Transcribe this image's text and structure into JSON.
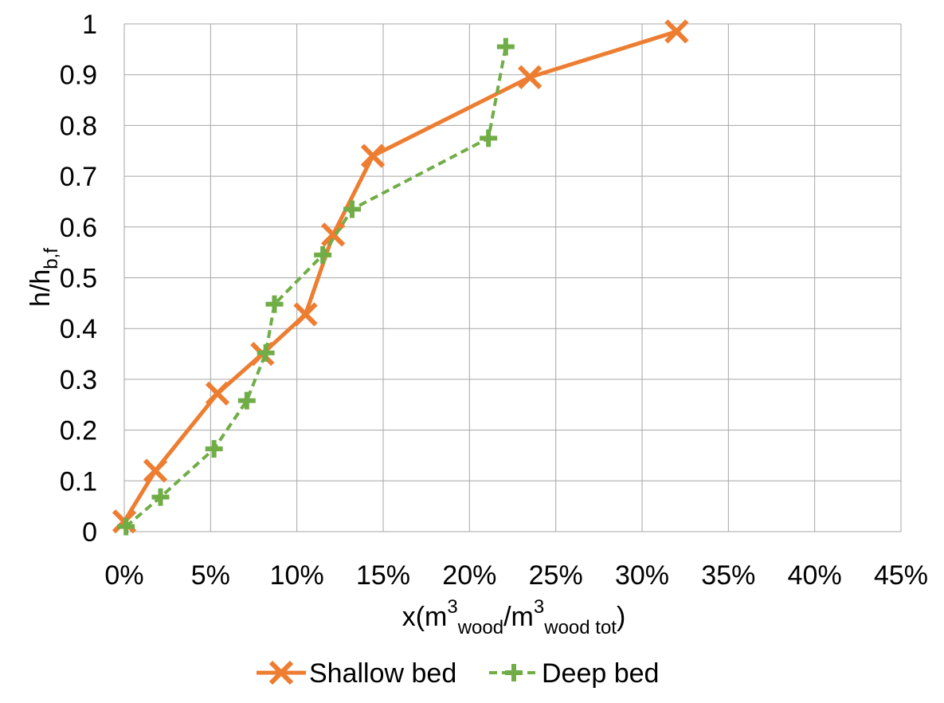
{
  "chart_data": {
    "type": "line",
    "title": "",
    "xlabel": {
      "base": "x(m",
      "sup1": "3",
      "sub1": "wood",
      "mid": "/m",
      "sup2": "3",
      "sub2": "wood tot",
      "end": ")"
    },
    "ylabel": {
      "base": "h/h",
      "sub": "b,f"
    },
    "xlim": [
      0,
      0.45
    ],
    "ylim": [
      0,
      1
    ],
    "x_ticks": [
      0,
      0.05,
      0.1,
      0.15,
      0.2,
      0.25,
      0.3,
      0.35,
      0.4,
      0.45
    ],
    "x_tick_labels": [
      "0%",
      "5%",
      "10%",
      "15%",
      "20%",
      "25%",
      "30%",
      "35%",
      "40%",
      "45%"
    ],
    "y_ticks": [
      0,
      0.1,
      0.2,
      0.3,
      0.4,
      0.5,
      0.6,
      0.7,
      0.8,
      0.9,
      1
    ],
    "y_tick_labels": [
      "0",
      "0.1",
      "0.2",
      "0.3",
      "0.4",
      "0.5",
      "0.6",
      "0.7",
      "0.8",
      "0.9",
      "1"
    ],
    "grid": true,
    "legend_position": "bottom",
    "series": [
      {
        "name": "Shallow bed",
        "color": "#ED7D31",
        "marker": "x",
        "line_style": "solid",
        "points": [
          [
            0.0,
            0.02
          ],
          [
            0.018,
            0.12
          ],
          [
            0.054,
            0.272
          ],
          [
            0.08,
            0.35
          ],
          [
            0.105,
            0.428
          ],
          [
            0.121,
            0.585
          ],
          [
            0.144,
            0.74
          ],
          [
            0.235,
            0.895
          ],
          [
            0.32,
            0.985
          ]
        ]
      },
      {
        "name": "Deep bed",
        "color": "#70AD47",
        "marker": "plus",
        "line_style": "dashed",
        "points": [
          [
            0.001,
            0.01
          ],
          [
            0.021,
            0.068
          ],
          [
            0.052,
            0.163
          ],
          [
            0.071,
            0.258
          ],
          [
            0.082,
            0.352
          ],
          [
            0.087,
            0.448
          ],
          [
            0.115,
            0.545
          ],
          [
            0.132,
            0.635
          ],
          [
            0.211,
            0.775
          ],
          [
            0.221,
            0.955
          ]
        ]
      }
    ]
  }
}
